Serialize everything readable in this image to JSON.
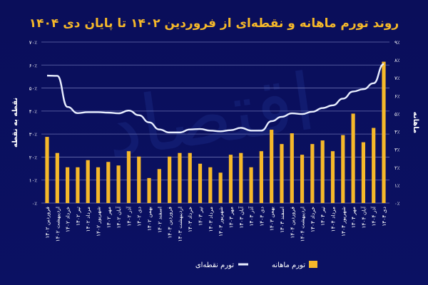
{
  "chart_data": {
    "type": "bar+line",
    "title": "روند تورم ماهانه و نقطه‌ای از فروردین ۱۴۰۲ تا پایان دی ۱۴۰۴",
    "ylabel_left": "نقطه به نقطه",
    "ylabel_right": "ماهانه",
    "ylim_left": [
      0,
      70
    ],
    "ylim_right": [
      0,
      9
    ],
    "yticks_left": [
      "۰٪",
      "۱۰٪",
      "۲۰٪",
      "۳۰٪",
      "۴۰٪",
      "۵۰٪",
      "۶۰٪",
      "۷۰٪"
    ],
    "yticks_right": [
      "۰٪",
      "۱٪",
      "۲٪",
      "۳٪",
      "۴٪",
      "۵٪",
      "۶٪",
      "۷٪",
      "۸٪",
      "۹٪"
    ],
    "grid": true,
    "legend_position": "bottom",
    "categories": [
      "فروردین ۱۴۰۲",
      "اردیبهشت ۱۴۰۲",
      "خرداد ۱۴۰۲",
      "تیر ۱۴۰۲",
      "مرداد ۱۴۰۲",
      "شهریور ۱۴۰۲",
      "مهر ۱۴۰۲",
      "آبان ۱۴۰۲",
      "آذر ۱۴۰۲",
      "دی ۱۴۰۲",
      "بهمن ۱۴۰۲",
      "اسفند ۱۴۰۲",
      "فروردین ۱۴۰۳",
      "اردیبهشت ۱۴۰۳",
      "خرداد ۱۴۰۳",
      "تیر ۱۴۰۳",
      "مرداد ۱۴۰۳",
      "شهریور ۱۴۰۳",
      "مهر ۱۴۰۳",
      "آبان ۱۴۰۳",
      "آذر ۱۴۰۳",
      "دی ۱۴۰۳",
      "بهمن ۱۴۰۳",
      "اسفند ۱۴۰۳",
      "فروردین ۱۴۰۴",
      "اردیبهشت ۱۴۰۴",
      "خرداد ۱۴۰۴",
      "تیر ۱۴۰۴",
      "مرداد ۱۴۰۴",
      "شهریور ۱۴۰۴",
      "مهر ۱۴۰۴",
      "آبان ۱۴۰۴",
      "آذر ۱۴۰۴",
      "دی ۱۴۰۴"
    ],
    "series": [
      {
        "name": "تورم ماهانه",
        "type": "bar",
        "axis": "right",
        "color": "#f5b82a",
        "values": [
          3.7,
          2.8,
          2.0,
          2.0,
          2.4,
          2.0,
          2.3,
          2.1,
          2.9,
          2.6,
          1.4,
          1.9,
          2.6,
          2.8,
          2.8,
          2.2,
          2.0,
          1.7,
          2.7,
          2.8,
          2.0,
          2.9,
          4.1,
          3.3,
          3.9,
          2.7,
          3.3,
          3.5,
          2.9,
          3.8,
          5.0,
          3.4,
          4.2,
          7.9
        ]
      },
      {
        "name": "تورم نقطه‌ای",
        "type": "line",
        "axis": "left",
        "color": "#e8eeff",
        "values": [
          55.4,
          55.3,
          41.8,
          39.1,
          39.5,
          39.5,
          39.3,
          39.0,
          40.2,
          38.2,
          35.1,
          32.0,
          30.7,
          30.7,
          32.0,
          32.2,
          31.5,
          31.2,
          31.7,
          32.7,
          31.5,
          31.5,
          35.6,
          37.5,
          39.0,
          38.7,
          39.7,
          41.3,
          42.5,
          45.4,
          48.5,
          49.5,
          52.1,
          60.4
        ]
      }
    ]
  }
}
